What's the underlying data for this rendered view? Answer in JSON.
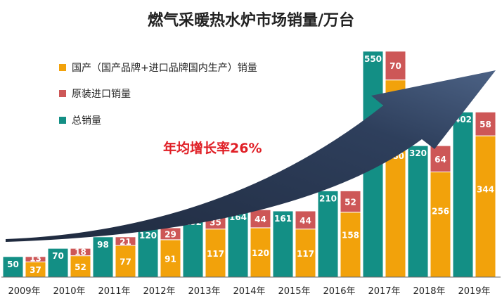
{
  "chart_data": {
    "type": "bar",
    "title": "燃气采暖热水炉市场销量/万台",
    "categories": [
      "2009年",
      "2010年",
      "2011年",
      "2012年",
      "2013年",
      "2014年",
      "2015年",
      "2016年",
      "2017年",
      "2018年",
      "2019年"
    ],
    "series": [
      {
        "name": "总销量",
        "color": "#138f85",
        "values": [
          50,
          70,
          98,
          120,
          152,
          164,
          161,
          210,
          550,
          320,
          402
        ]
      },
      {
        "name": "国产（国产品牌+进口品牌国内生产）销量",
        "color": "#f2a20b",
        "values": [
          37,
          52,
          77,
          91,
          117,
          120,
          117,
          158,
          480,
          256,
          344
        ]
      },
      {
        "name": "原装进口销量",
        "color": "#cd5757",
        "values": [
          13,
          18,
          21,
          29,
          35,
          44,
          44,
          52,
          70,
          64,
          58
        ]
      }
    ],
    "legend": [
      "国产（国产品牌+进口品牌国内生产）销量",
      "原装进口销量",
      "总销量"
    ],
    "annotation": "年均增长率26%",
    "ylim": [
      0,
      600
    ],
    "grid": false,
    "legend_position": "top-left"
  }
}
